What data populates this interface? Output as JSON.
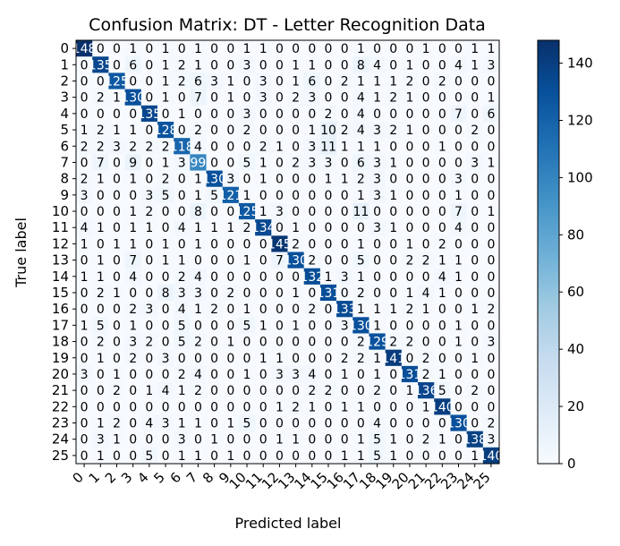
{
  "chart_data": {
    "type": "heatmap",
    "title": "Confusion Matrix: DT - Letter Recognition Data",
    "xlabel": "Predicted label",
    "ylabel": "True label",
    "labels": [
      "0",
      "1",
      "2",
      "3",
      "4",
      "5",
      "6",
      "7",
      "8",
      "9",
      "10",
      "11",
      "12",
      "13",
      "14",
      "15",
      "16",
      "17",
      "18",
      "19",
      "20",
      "21",
      "22",
      "23",
      "24",
      "25"
    ],
    "colorbar": {
      "min": 0,
      "max": 148,
      "ticks": [
        0,
        20,
        40,
        60,
        80,
        100,
        120,
        140
      ]
    },
    "colormap": "Blues",
    "matrix": [
      [
        148,
        0,
        0,
        1,
        0,
        1,
        0,
        1,
        0,
        0,
        1,
        1,
        0,
        0,
        0,
        0,
        0,
        1,
        0,
        0,
        0,
        1,
        0,
        0,
        1,
        1
      ],
      [
        0,
        135,
        0,
        6,
        0,
        1,
        2,
        1,
        0,
        0,
        3,
        0,
        0,
        1,
        1,
        0,
        0,
        8,
        4,
        0,
        1,
        0,
        0,
        4,
        1,
        3
      ],
      [
        0,
        0,
        125,
        0,
        0,
        1,
        2,
        6,
        3,
        1,
        0,
        3,
        0,
        1,
        6,
        0,
        2,
        1,
        1,
        1,
        2,
        0,
        2,
        0,
        0,
        0
      ],
      [
        0,
        2,
        1,
        130,
        0,
        1,
        0,
        7,
        0,
        1,
        0,
        3,
        0,
        2,
        3,
        0,
        0,
        4,
        1,
        2,
        1,
        0,
        0,
        0,
        0,
        1
      ],
      [
        0,
        0,
        0,
        0,
        135,
        0,
        1,
        0,
        0,
        0,
        3,
        0,
        0,
        0,
        0,
        2,
        0,
        4,
        0,
        0,
        0,
        0,
        0,
        7,
        0,
        6
      ],
      [
        1,
        2,
        1,
        1,
        0,
        128,
        0,
        2,
        0,
        0,
        2,
        0,
        0,
        0,
        1,
        10,
        2,
        4,
        3,
        2,
        1,
        0,
        0,
        0,
        2,
        0
      ],
      [
        2,
        2,
        3,
        2,
        2,
        2,
        118,
        4,
        0,
        0,
        0,
        2,
        1,
        0,
        3,
        11,
        1,
        1,
        1,
        0,
        0,
        0,
        1,
        0,
        0,
        0
      ],
      [
        0,
        7,
        0,
        9,
        0,
        1,
        3,
        99,
        0,
        0,
        5,
        1,
        0,
        2,
        3,
        3,
        0,
        6,
        3,
        1,
        0,
        0,
        0,
        0,
        3,
        1
      ],
      [
        2,
        1,
        0,
        1,
        0,
        2,
        0,
        1,
        130,
        3,
        0,
        1,
        0,
        0,
        0,
        1,
        1,
        2,
        3,
        0,
        0,
        0,
        0,
        3,
        0,
        0
      ],
      [
        3,
        0,
        0,
        0,
        3,
        5,
        0,
        1,
        5,
        121,
        1,
        0,
        0,
        0,
        0,
        0,
        0,
        1,
        3,
        1,
        0,
        0,
        0,
        1,
        0,
        0
      ],
      [
        0,
        0,
        0,
        1,
        2,
        0,
        0,
        8,
        0,
        0,
        125,
        1,
        3,
        0,
        0,
        0,
        0,
        11,
        0,
        0,
        0,
        0,
        0,
        7,
        0,
        1
      ],
      [
        4,
        1,
        0,
        1,
        1,
        0,
        4,
        1,
        1,
        1,
        2,
        134,
        0,
        1,
        0,
        0,
        0,
        0,
        3,
        1,
        0,
        0,
        0,
        4,
        0,
        0
      ],
      [
        1,
        0,
        1,
        1,
        0,
        1,
        0,
        1,
        0,
        0,
        0,
        0,
        145,
        2,
        0,
        0,
        0,
        1,
        0,
        0,
        1,
        0,
        2,
        0,
        0,
        0
      ],
      [
        0,
        1,
        0,
        7,
        0,
        1,
        1,
        0,
        0,
        0,
        1,
        0,
        7,
        130,
        2,
        0,
        0,
        5,
        0,
        0,
        2,
        2,
        1,
        1,
        0,
        0
      ],
      [
        1,
        1,
        0,
        4,
        0,
        0,
        2,
        4,
        0,
        0,
        0,
        0,
        0,
        0,
        132,
        1,
        3,
        1,
        0,
        0,
        0,
        0,
        4,
        1,
        0,
        0
      ],
      [
        0,
        2,
        1,
        0,
        0,
        8,
        3,
        3,
        0,
        2,
        0,
        0,
        0,
        1,
        0,
        131,
        0,
        2,
        0,
        0,
        1,
        4,
        1,
        0,
        0,
        0
      ],
      [
        0,
        0,
        0,
        2,
        3,
        0,
        4,
        1,
        2,
        0,
        1,
        0,
        0,
        0,
        2,
        0,
        133,
        1,
        1,
        1,
        2,
        1,
        0,
        0,
        1,
        2
      ],
      [
        1,
        5,
        0,
        1,
        0,
        0,
        5,
        0,
        0,
        0,
        5,
        1,
        0,
        1,
        0,
        0,
        3,
        130,
        1,
        0,
        0,
        0,
        0,
        1,
        0,
        0
      ],
      [
        0,
        2,
        0,
        3,
        2,
        0,
        5,
        2,
        0,
        1,
        0,
        0,
        0,
        0,
        0,
        0,
        0,
        2,
        129,
        2,
        2,
        0,
        0,
        1,
        0,
        3
      ],
      [
        0,
        1,
        0,
        2,
        0,
        3,
        0,
        0,
        0,
        0,
        0,
        1,
        1,
        0,
        0,
        0,
        2,
        2,
        1,
        141,
        0,
        2,
        0,
        0,
        1,
        0
      ],
      [
        3,
        0,
        1,
        0,
        0,
        0,
        2,
        4,
        0,
        0,
        1,
        0,
        3,
        3,
        4,
        0,
        1,
        0,
        1,
        0,
        131,
        2,
        1,
        0,
        0,
        0
      ],
      [
        0,
        0,
        2,
        0,
        1,
        4,
        1,
        2,
        0,
        0,
        0,
        0,
        0,
        0,
        2,
        2,
        0,
        0,
        2,
        0,
        1,
        136,
        5,
        0,
        2,
        0
      ],
      [
        0,
        0,
        0,
        0,
        0,
        0,
        0,
        0,
        0,
        0,
        0,
        0,
        1,
        2,
        1,
        0,
        1,
        1,
        0,
        0,
        0,
        1,
        140,
        0,
        0,
        0
      ],
      [
        0,
        1,
        2,
        0,
        4,
        3,
        1,
        1,
        0,
        1,
        5,
        0,
        0,
        0,
        0,
        0,
        0,
        0,
        4,
        0,
        0,
        0,
        0,
        130,
        0,
        2
      ],
      [
        0,
        3,
        1,
        0,
        0,
        0,
        3,
        0,
        1,
        0,
        0,
        0,
        1,
        1,
        0,
        0,
        0,
        1,
        5,
        1,
        0,
        2,
        1,
        0,
        138,
        3
      ],
      [
        0,
        1,
        0,
        0,
        5,
        0,
        1,
        1,
        0,
        1,
        0,
        0,
        0,
        0,
        0,
        0,
        1,
        1,
        5,
        1,
        0,
        0,
        0,
        0,
        1,
        140
      ]
    ]
  }
}
